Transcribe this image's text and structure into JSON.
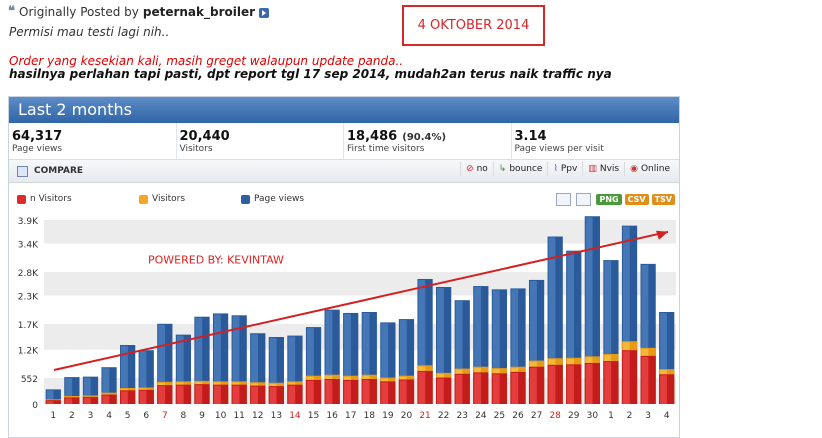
{
  "post": {
    "prefix": "Originally Posted by",
    "author": "peternak_broiler",
    "line1": "Permisi mau testi lagi nih..",
    "line2": "Order yang kesekian kali, masih greget walaupun update panda..",
    "line3": "hasilnya perlahan tapi pasti, dpt report tgl 17 sep 2014, mudah2an terus naik traffic nya"
  },
  "date_box": "4 OKTOBER 2014",
  "panel": {
    "title": "Last 2 months",
    "stats": [
      {
        "value": "64,317",
        "pct": "",
        "label": "Page views"
      },
      {
        "value": "20,440",
        "pct": "",
        "label": "Visitors"
      },
      {
        "value": "18,486",
        "pct": "(90.4%)",
        "label": "First time visitors"
      },
      {
        "value": "3.14",
        "pct": "",
        "label": "Page views per visit"
      }
    ],
    "toolbar": {
      "compare": "COMPARE",
      "buttons": [
        {
          "icon": "no-icon",
          "label": "no"
        },
        {
          "icon": "bounce-icon",
          "label": "bounce"
        },
        {
          "icon": "ppv-icon",
          "label": "Ppv"
        },
        {
          "icon": "nvis-icon",
          "label": "Nvis"
        },
        {
          "icon": "online-icon",
          "label": "Online"
        }
      ]
    },
    "legend": [
      {
        "label": "n Visitors",
        "color": "#e02a2a"
      },
      {
        "label": "Visitors",
        "color": "#f5a623"
      },
      {
        "label": "Page views",
        "color": "#2f5f9e"
      }
    ],
    "exports": [
      {
        "label": "PNG",
        "color": "#4a9a3a"
      },
      {
        "label": "CSV",
        "color": "#e0901a"
      },
      {
        "label": "TSV",
        "color": "#e0901a"
      }
    ]
  },
  "chart_data": {
    "type": "bar",
    "annotation": "POWERED BY: KEVINTAW",
    "y_ticks": [
      "0",
      "552",
      "1.2K",
      "1.7K",
      "2.3K",
      "2.8K",
      "3.4K",
      "3.9K"
    ],
    "y_tick_values": [
      0,
      552,
      1150,
      1700,
      2300,
      2800,
      3400,
      3900
    ],
    "ylim": [
      0,
      3900
    ],
    "categories": [
      "1",
      "2",
      "3",
      "4",
      "5",
      "6",
      "7",
      "8",
      "9",
      "10",
      "11",
      "12",
      "13",
      "14",
      "15",
      "16",
      "17",
      "18",
      "19",
      "20",
      "21",
      "22",
      "23",
      "24",
      "25",
      "26",
      "27",
      "28",
      "29",
      "30",
      "1",
      "2",
      "3",
      "4"
    ],
    "highlighted_categories": [
      "7",
      "14",
      "21",
      "28"
    ],
    "series": [
      {
        "name": "Page views",
        "color": "#3a6fb0",
        "values": [
          310,
          570,
          580,
          780,
          1250,
          1140,
          1700,
          1470,
          1850,
          1920,
          1880,
          1500,
          1420,
          1450,
          1630,
          2000,
          1930,
          1950,
          1730,
          1800,
          2650,
          2480,
          2200,
          2500,
          2430,
          2450,
          2630,
          3550,
          3250,
          3980,
          3050,
          3780,
          2970,
          1950
        ]
      },
      {
        "name": "Visitors",
        "color": "#f5a623",
        "values": [
          100,
          170,
          180,
          240,
          340,
          350,
          470,
          480,
          490,
          480,
          480,
          460,
          450,
          480,
          600,
          620,
          600,
          620,
          560,
          600,
          820,
          660,
          750,
          790,
          760,
          790,
          920,
          970,
          980,
          1010,
          1060,
          1330,
          1190,
          740
        ]
      },
      {
        "name": "n Visitors",
        "color": "#e02a2a",
        "values": [
          80,
          140,
          150,
          200,
          290,
          300,
          400,
          410,
          420,
          410,
          410,
          390,
          380,
          410,
          510,
          530,
          510,
          530,
          480,
          520,
          700,
          560,
          640,
          670,
          650,
          680,
          790,
          830,
          840,
          870,
          910,
          1140,
          1020,
          630
        ]
      }
    ]
  }
}
